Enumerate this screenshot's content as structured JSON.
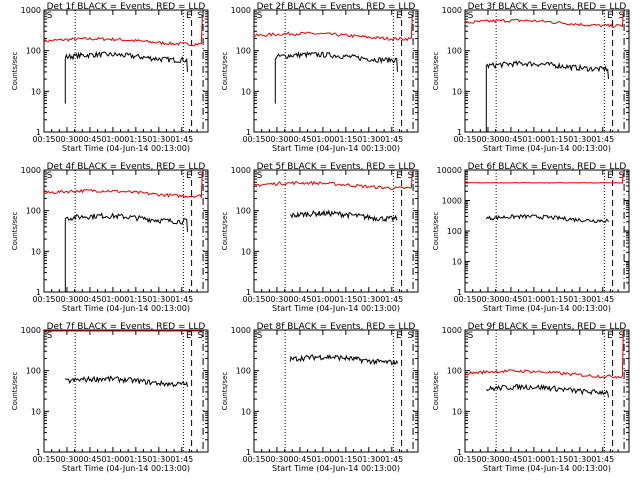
{
  "chart_data": [
    {
      "type": "line",
      "title": "Det 1f BLACK = Events, RED = LLD",
      "xlabel": "Start Time (04-Jun-14 00:13:00)",
      "ylabel": "Counts/sec",
      "ylog": true,
      "ylim": [
        1,
        1000
      ],
      "x_ticks": [
        "00:15",
        "00:30",
        "00:45",
        "01:00",
        "01:15",
        "01:30",
        "01:45"
      ],
      "y_ticks": [
        "1",
        "10",
        "100",
        "1000"
      ],
      "markers": [
        "S",
        "E",
        "S"
      ],
      "series": [
        {
          "name": "LLD",
          "color": "#e00000",
          "level": 170,
          "start": 0,
          "end": 0.96,
          "tail": 700
        },
        {
          "name": "Events",
          "color": "#000000",
          "level": 70,
          "start": 0.13,
          "end": 0.87,
          "dropTo": 5,
          "tail": 30
        }
      ]
    },
    {
      "type": "line",
      "title": "Det 2f BLACK = Events, RED = LLD",
      "xlabel": "Start Time (04-Jun-14 00:13:00)",
      "ylabel": "Counts/sec",
      "ylog": true,
      "ylim": [
        1,
        1000
      ],
      "x_ticks": [
        "00:15",
        "00:30",
        "00:45",
        "01:00",
        "01:15",
        "01:30",
        "01:45"
      ],
      "y_ticks": [
        "1",
        "10",
        "100",
        "1000"
      ],
      "markers": [
        "S",
        "E",
        "S"
      ],
      "series": [
        {
          "name": "LLD",
          "color": "#e00000",
          "level": 230,
          "start": 0,
          "end": 0.96,
          "tail": 700
        },
        {
          "name": "Events",
          "color": "#000000",
          "level": 70,
          "start": 0.13,
          "end": 0.87,
          "dropTo": 5,
          "tail": 30
        }
      ]
    },
    {
      "type": "line",
      "title": "Det 3f BLACK = Events, RED = LLD",
      "xlabel": "Start Time (04-Jun-14 00:13:00)",
      "ylabel": "Counts/sec",
      "ylog": true,
      "ylim": [
        1,
        1000
      ],
      "x_ticks": [
        "00:15",
        "00:30",
        "00:45",
        "01:00",
        "01:15",
        "01:30",
        "01:45"
      ],
      "y_ticks": [
        "1",
        "10",
        "100",
        "1000"
      ],
      "markers": [
        "S",
        "E",
        "S"
      ],
      "series": [
        {
          "name": "LLD",
          "color": "#e00000",
          "level": 480,
          "start": 0,
          "end": 0.96,
          "tail": 900
        },
        {
          "name": "Events",
          "color": "#000000",
          "level": 42,
          "start": 0.13,
          "end": 0.87,
          "dropTo": 1,
          "tail": 20
        }
      ]
    },
    {
      "type": "line",
      "title": "Det 4f BLACK = Events, RED = LLD",
      "xlabel": "Start Time (04-Jun-14 00:13:00)",
      "ylabel": "Counts/sec",
      "ylog": true,
      "ylim": [
        1,
        1000
      ],
      "x_ticks": [
        "00:15",
        "00:30",
        "00:45",
        "01:00",
        "01:15",
        "01:30",
        "01:45"
      ],
      "y_ticks": [
        "1",
        "10",
        "100",
        "1000"
      ],
      "markers": [
        "S",
        "E",
        "S"
      ],
      "series": [
        {
          "name": "LLD",
          "color": "#e00000",
          "level": 270,
          "start": 0,
          "end": 0.96,
          "tail": 900
        },
        {
          "name": "Events",
          "color": "#000000",
          "level": 65,
          "start": 0.13,
          "end": 0.87,
          "dropTo": 1,
          "tail": 30
        }
      ]
    },
    {
      "type": "line",
      "title": "Det 5f BLACK = Events, RED = LLD",
      "xlabel": "Start Time (04-Jun-14 00:13:00)",
      "ylabel": "Counts/sec",
      "ylog": true,
      "ylim": [
        1,
        1000
      ],
      "x_ticks": [
        "00:15",
        "00:30",
        "00:45",
        "01:00",
        "01:15",
        "01:30",
        "01:45"
      ],
      "y_ticks": [
        "1",
        "10",
        "100",
        "1000"
      ],
      "markers": [
        "S",
        "E",
        "S"
      ],
      "series": [
        {
          "name": "LLD",
          "color": "#e00000",
          "level": 420,
          "start": 0,
          "end": 0.96,
          "tail": 900
        },
        {
          "name": "Events",
          "color": "#000000",
          "level": 75,
          "start": 0.22,
          "end": 0.87,
          "dropTo": null,
          "tail": 60
        }
      ]
    },
    {
      "type": "line",
      "title": "Det 6f BLACK = Events, RED = LLD",
      "xlabel": "Start Time (04-Jun-14 00:13:00)",
      "ylabel": "Counts/sec",
      "ylog": true,
      "ylim": [
        1,
        10000
      ],
      "x_ticks": [
        "00:15",
        "00:30",
        "00:45",
        "01:00",
        "01:15",
        "01:30",
        "01:45"
      ],
      "y_ticks": [
        "1",
        "10",
        "100",
        "1000",
        "10000"
      ],
      "markers": [
        "E",
        "S"
      ],
      "series": [
        {
          "name": "LLD",
          "color": "#e00000",
          "level": 3800,
          "start": 0,
          "end": 0.96,
          "tail": 8000
        },
        {
          "name": "Events",
          "color": "#000000",
          "level": 260,
          "start": 0.13,
          "end": 0.87,
          "dropTo": null,
          "tail": 200
        }
      ]
    },
    {
      "type": "line",
      "title": "Det 7f BLACK = Events, RED = LLD",
      "xlabel": "Start Time (04-Jun-14 00:13:00)",
      "ylabel": "Counts/sec",
      "ylog": true,
      "ylim": [
        1,
        1000
      ],
      "x_ticks": [
        "00:15",
        "00:30",
        "00:45",
        "01:00",
        "01:15",
        "01:30",
        "01:45"
      ],
      "y_ticks": [
        "1",
        "10",
        "100",
        "1000"
      ],
      "markers": [
        "S",
        "E",
        "S"
      ],
      "series": [
        {
          "name": "LLD",
          "color": "#e00000",
          "level": 1050,
          "start": 0,
          "end": 0.96,
          "tail": 1000
        },
        {
          "name": "Events",
          "color": "#000000",
          "level": 55,
          "start": 0.13,
          "end": 0.87,
          "dropTo": null,
          "tail": 40
        }
      ]
    },
    {
      "type": "line",
      "title": "Det 8f BLACK = Events, RED = LLD",
      "xlabel": "Start Time (04-Jun-14 00:13:00)",
      "ylabel": "Counts/sec",
      "ylog": true,
      "ylim": [
        1,
        1000
      ],
      "x_ticks": [
        "00:15",
        "00:30",
        "00:45",
        "01:00",
        "01:15",
        "01:30",
        "01:45"
      ],
      "y_ticks": [
        "1",
        "10",
        "100",
        "1000"
      ],
      "markers": [
        "S",
        "E",
        "S"
      ],
      "series": [
        {
          "name": "LLD",
          "color": "#e00000",
          "level": null,
          "start": 0,
          "end": 0.96,
          "tail": null
        },
        {
          "name": "Events",
          "color": "#000000",
          "level": 190,
          "start": 0.22,
          "end": 0.87,
          "dropTo": null,
          "tail": 150
        }
      ]
    },
    {
      "type": "line",
      "title": "Det 9f BLACK = Events, RED = LLD",
      "xlabel": "Start Time (04-Jun-14 00:13:00)",
      "ylabel": "Counts/sec",
      "ylog": true,
      "ylim": [
        1,
        1000
      ],
      "x_ticks": [
        "00:15",
        "00:30",
        "00:45",
        "01:00",
        "01:15",
        "01:30",
        "01:45"
      ],
      "y_ticks": [
        "1",
        "10",
        "100",
        "1000"
      ],
      "markers": [
        "S",
        "E",
        "S"
      ],
      "series": [
        {
          "name": "LLD",
          "color": "#e00000",
          "level": 85,
          "start": 0,
          "end": 0.96,
          "tail": 1000
        },
        {
          "name": "Events",
          "color": "#000000",
          "level": 35,
          "start": 0.13,
          "end": 0.87,
          "dropTo": null,
          "tail": 22
        }
      ]
    }
  ]
}
